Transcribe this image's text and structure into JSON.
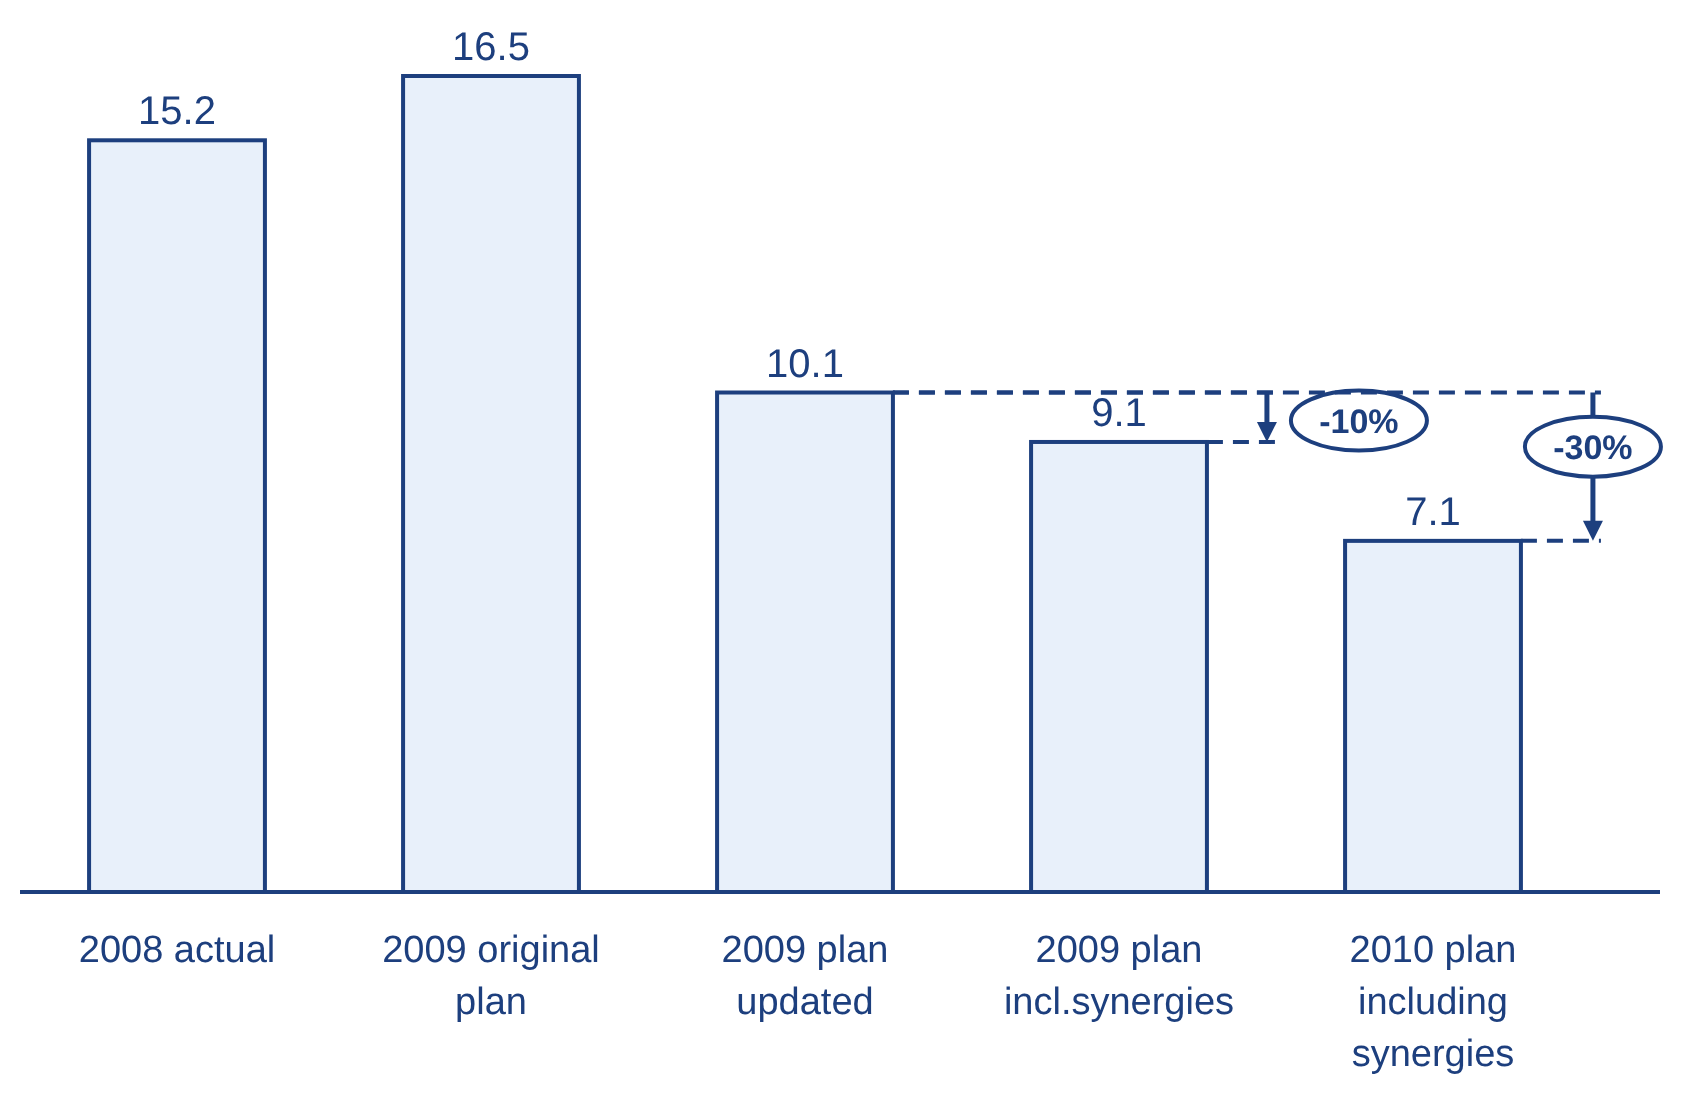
{
  "chart_data": {
    "type": "bar",
    "categories": [
      "2008 actual",
      "2009 original plan",
      "2009 plan updated",
      "2009 plan incl.synergies",
      "2010 plan including synergies"
    ],
    "values": [
      15.2,
      16.5,
      10.1,
      9.1,
      7.1
    ],
    "color": "#e8f0fa",
    "data_labels": true,
    "annotations": [
      "-10%",
      "-30%"
    ]
  }
}
